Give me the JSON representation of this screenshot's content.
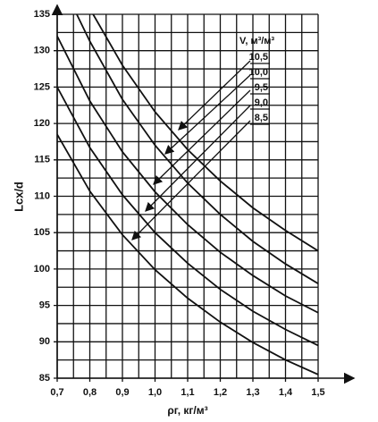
{
  "chart_data": {
    "type": "line",
    "y_label": "Lсх/d",
    "x_label": "ρг, кг/м³",
    "legend_title": "V, м³/м³",
    "xlim": [
      0.7,
      1.5
    ],
    "ylim": [
      85,
      135
    ],
    "xticks": [
      {
        "value": 0.7,
        "label": "0,7"
      },
      {
        "value": 0.8,
        "label": "0,8"
      },
      {
        "value": 0.9,
        "label": "0,9"
      },
      {
        "value": 1.0,
        "label": "1,0"
      },
      {
        "value": 1.1,
        "label": "1,1"
      },
      {
        "value": 1.2,
        "label": "1,2"
      },
      {
        "value": 1.3,
        "label": "1,3"
      },
      {
        "value": 1.4,
        "label": "1,4"
      },
      {
        "value": 1.5,
        "label": "1,5"
      }
    ],
    "yticks": [
      85,
      90,
      95,
      100,
      105,
      110,
      115,
      120,
      125,
      130,
      135
    ],
    "grid": true,
    "minor_grid": true,
    "series": [
      {
        "name": "10,5",
        "color": "#111",
        "x": [
          0.81,
          0.9,
          1.0,
          1.1,
          1.2,
          1.3,
          1.4,
          1.5
        ],
        "values": [
          135,
          128,
          121.6,
          116.4,
          112.1,
          108.4,
          105.3,
          102.5
        ]
      },
      {
        "name": "10,0",
        "color": "#111",
        "x": [
          0.76,
          0.8,
          0.9,
          1.0,
          1.1,
          1.2,
          1.3,
          1.4,
          1.5
        ],
        "values": [
          135,
          131.3,
          123.3,
          117,
          111.8,
          107.5,
          103.8,
          100.7,
          98
        ]
      },
      {
        "name": "9,5",
        "color": "#111",
        "x": [
          0.7,
          0.8,
          0.9,
          1.0,
          1.1,
          1.2,
          1.3,
          1.4,
          1.5
        ],
        "values": [
          132,
          123.1,
          116.1,
          110.6,
          106.1,
          102.3,
          99.1,
          96.3,
          94
        ]
      },
      {
        "name": "9,0",
        "color": "#111",
        "x": [
          0.7,
          0.8,
          0.9,
          1.0,
          1.1,
          1.2,
          1.3,
          1.4,
          1.5
        ],
        "values": [
          125,
          116.7,
          110.2,
          105,
          100.8,
          97.2,
          94.2,
          91.7,
          89.5
        ]
      },
      {
        "name": "8,5",
        "color": "#111",
        "x": [
          0.7,
          0.8,
          0.9,
          1.0,
          1.1,
          1.2,
          1.3,
          1.4,
          1.5
        ],
        "values": [
          118.5,
          110.7,
          104.7,
          99.9,
          96,
          92.7,
          89.9,
          87.5,
          85.5
        ]
      }
    ]
  }
}
